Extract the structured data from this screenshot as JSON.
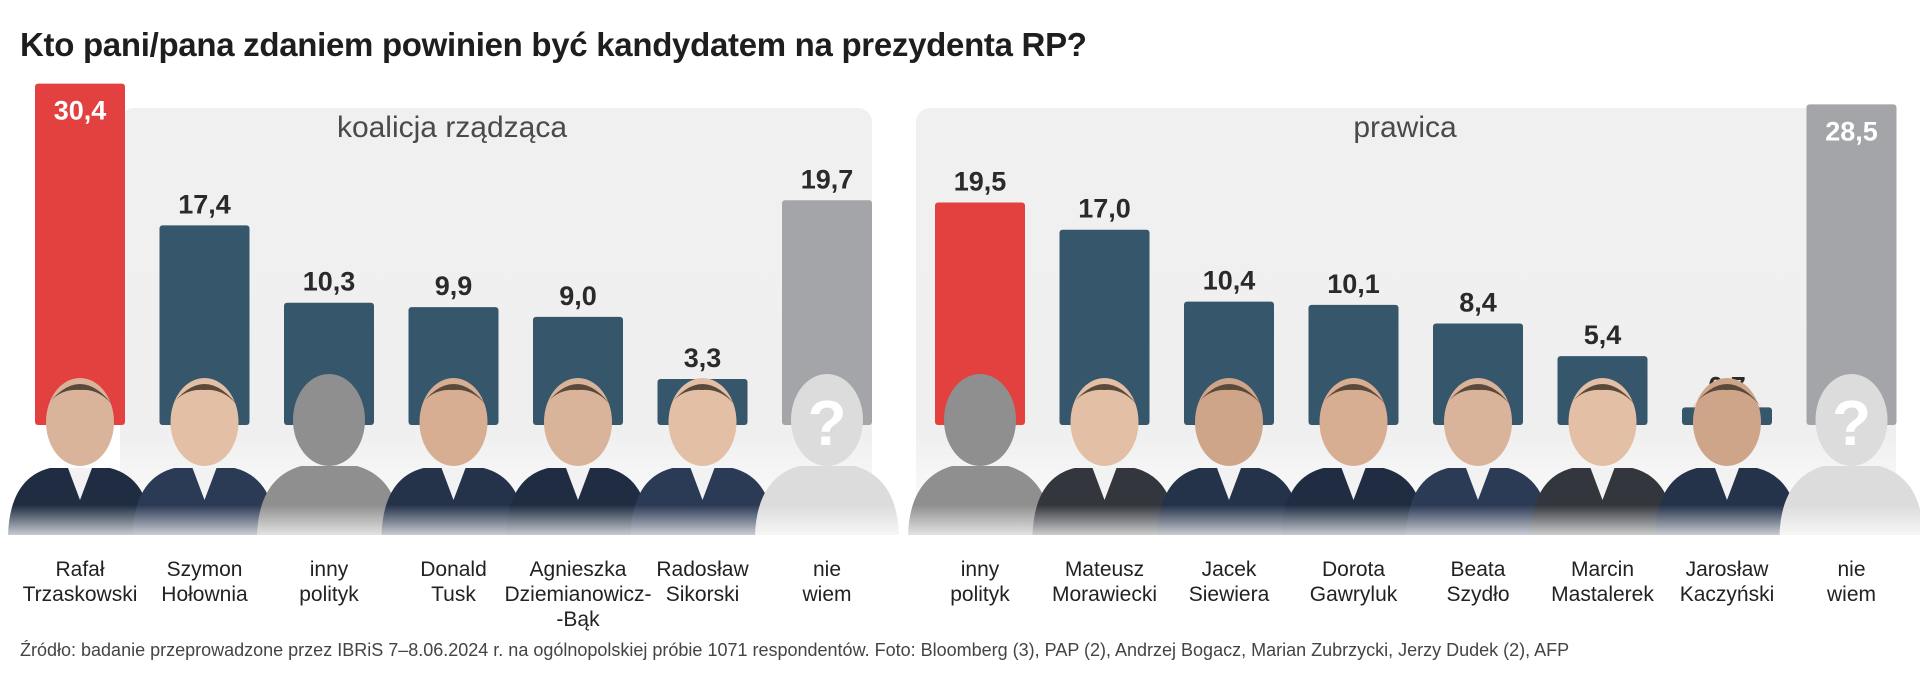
{
  "title": "Kto pani/pana zdaniem powinien być kandydatem na prezydenta RP?",
  "source": "Źródło: badanie przeprowadzone przez IBRiS 7–8.06.2024 r. na ogólnopolskiej próbie 1071 respondentów. Foto: Bloomberg (3), PAP (2), Andrzej Bogacz, Marian Zubrzycki, Jerzy Dudek (2), AFP",
  "colors": {
    "highlight": "#e2413f",
    "bar": "#36566b",
    "unknown": "#a4a5a9",
    "panel": "#eeeeee",
    "silhouette": "#8f8f8f"
  },
  "chart_data": {
    "type": "bar",
    "title": "Kto pani/pana zdaniem powinien być kandydatem na prezydenta RP?",
    "xlabel": "",
    "ylabel": "",
    "groups": [
      {
        "name": "koalicja rządząca",
        "categories": [
          {
            "label": [
              "Rafał",
              "Trzaskowski"
            ],
            "value": 30.4,
            "display": "30,4",
            "style": "highlight",
            "photo": "person-photo"
          },
          {
            "label": [
              "Szymon",
              "Hołownia"
            ],
            "value": 17.4,
            "display": "17,4",
            "style": "bar",
            "photo": "person-photo"
          },
          {
            "label": [
              "inny",
              "polityk"
            ],
            "value": 10.3,
            "display": "10,3",
            "style": "bar",
            "photo": "silhouette-icon"
          },
          {
            "label": [
              "Donald",
              "Tusk"
            ],
            "value": 9.9,
            "display": "9,9",
            "style": "bar",
            "photo": "person-photo"
          },
          {
            "label": [
              "Agnieszka",
              "Dziemianowicz-",
              "-Bąk"
            ],
            "value": 9.0,
            "display": "9,0",
            "style": "bar",
            "photo": "person-photo"
          },
          {
            "label": [
              "Radosław",
              "Sikorski"
            ],
            "value": 3.3,
            "display": "3,3",
            "style": "bar",
            "photo": "person-photo"
          },
          {
            "label": [
              "nie",
              "wiem"
            ],
            "value": 19.7,
            "display": "19,7",
            "style": "unknown",
            "photo": "question-silhouette-icon"
          }
        ]
      },
      {
        "name": "prawica",
        "categories": [
          {
            "label": [
              "inny",
              "polityk"
            ],
            "value": 19.5,
            "display": "19,5",
            "style": "highlight",
            "photo": "silhouette-icon"
          },
          {
            "label": [
              "Mateusz",
              "Morawiecki"
            ],
            "value": 17.0,
            "display": "17,0",
            "style": "bar",
            "photo": "person-photo"
          },
          {
            "label": [
              "Jacek",
              "Siewiera"
            ],
            "value": 10.4,
            "display": "10,4",
            "style": "bar",
            "photo": "person-photo"
          },
          {
            "label": [
              "Dorota",
              "Gawryluk"
            ],
            "value": 10.1,
            "display": "10,1",
            "style": "bar",
            "photo": "person-photo"
          },
          {
            "label": [
              "Beata",
              "Szydło"
            ],
            "value": 8.4,
            "display": "8,4",
            "style": "bar",
            "photo": "person-photo"
          },
          {
            "label": [
              "Marcin",
              "Mastalerek"
            ],
            "value": 5.4,
            "display": "5,4",
            "style": "bar",
            "photo": "person-photo"
          },
          {
            "label": [
              "Jarosław",
              "Kaczyński"
            ],
            "value": 0.7,
            "display": "0,7",
            "style": "bar",
            "photo": "person-photo"
          },
          {
            "label": [
              "nie",
              "wiem"
            ],
            "value": 28.5,
            "display": "28,5",
            "style": "unknown",
            "photo": "question-silhouette-icon"
          }
        ]
      }
    ]
  }
}
